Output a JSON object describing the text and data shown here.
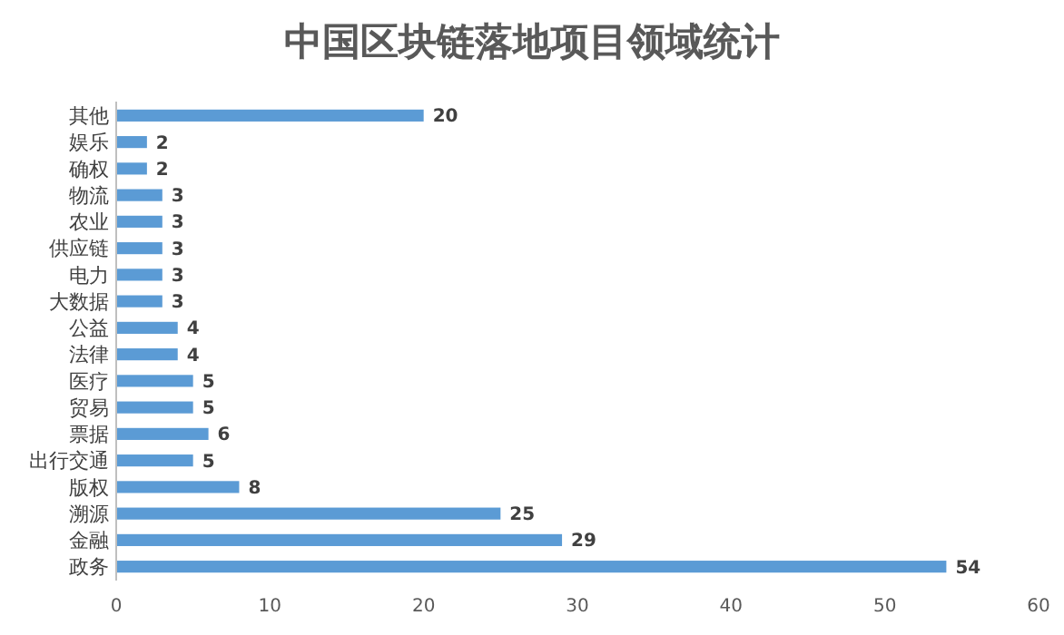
{
  "chart_data": {
    "type": "bar",
    "orientation": "horizontal",
    "title": "中国区块链落地项目领域统计",
    "categories": [
      "其他",
      "娱乐",
      "确权",
      "物流",
      "农业",
      "供应链",
      "电力",
      "大数据",
      "公益",
      "法律",
      "医疗",
      "贸易",
      "票据",
      "出行交通",
      "版权",
      "溯源",
      "金融",
      "政务"
    ],
    "values": [
      20,
      2,
      2,
      3,
      3,
      3,
      3,
      3,
      4,
      4,
      5,
      5,
      6,
      5,
      8,
      25,
      29,
      54
    ],
    "color": "#5b9bd5",
    "xlim": [
      0,
      60
    ],
    "xticks": [
      0,
      10,
      20,
      30,
      40,
      50,
      60
    ],
    "data_labels": true,
    "grid": false
  }
}
